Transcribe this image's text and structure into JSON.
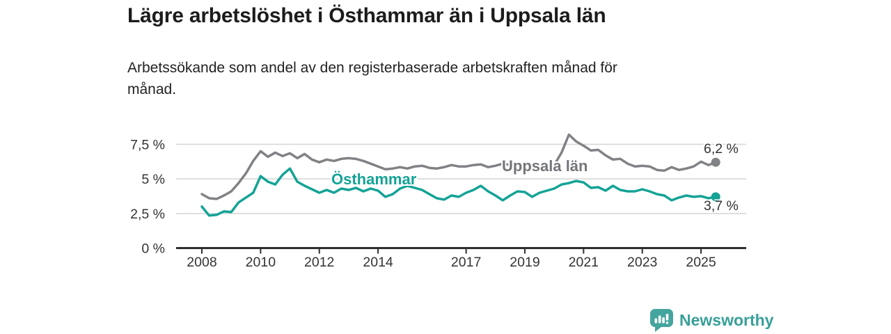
{
  "header": {
    "title": "Lägre arbetslöshet i Östhammar än i Uppsala län",
    "subtitle_line1": "Arbetssökande som andel av den registerbaserade arbetskraften månad för",
    "subtitle_line2": "månad."
  },
  "chart_data": {
    "type": "line",
    "title": "Lägre arbetslöshet i Östhammar än i Uppsala län",
    "subtitle": "Arbetssökande som andel av den registerbaserade arbetskraften månad för månad.",
    "xlabel": "",
    "ylabel": "",
    "x_unit": "year (monthly series, values in percent)",
    "xlim": [
      2007.1,
      2026.5
    ],
    "ylim": [
      0,
      8.5
    ],
    "grid": "horizontal",
    "legend_position": "inline-labels",
    "y_ticks": [
      {
        "value": 0,
        "label": "0 %"
      },
      {
        "value": 2.5,
        "label": "2,5 %"
      },
      {
        "value": 5,
        "label": "5 %"
      },
      {
        "value": 7.5,
        "label": "7,5 %"
      }
    ],
    "x_ticks": [
      {
        "value": 2008,
        "label": "2008"
      },
      {
        "value": 2010,
        "label": "2010"
      },
      {
        "value": 2012,
        "label": "2012"
      },
      {
        "value": 2014,
        "label": "2014"
      },
      {
        "value": 2017,
        "label": "2017"
      },
      {
        "value": 2019,
        "label": "2019"
      },
      {
        "value": 2021,
        "label": "2021"
      },
      {
        "value": 2023,
        "label": "2023"
      },
      {
        "value": 2025,
        "label": "2025"
      }
    ],
    "x": [
      2008,
      2008.25,
      2008.5,
      2008.75,
      2009,
      2009.25,
      2009.5,
      2009.75,
      2010,
      2010.25,
      2010.5,
      2010.75,
      2011,
      2011.25,
      2011.5,
      2011.75,
      2012,
      2012.25,
      2012.5,
      2012.75,
      2013,
      2013.25,
      2013.5,
      2013.75,
      2014,
      2014.25,
      2014.5,
      2014.75,
      2015,
      2015.25,
      2015.5,
      2015.75,
      2016,
      2016.25,
      2016.5,
      2016.75,
      2017,
      2017.25,
      2017.5,
      2017.75,
      2018,
      2018.25,
      2018.5,
      2018.75,
      2019,
      2019.25,
      2019.5,
      2019.75,
      2020,
      2020.25,
      2020.5,
      2020.75,
      2021,
      2021.25,
      2021.5,
      2021.75,
      2022,
      2022.25,
      2022.5,
      2022.75,
      2023,
      2023.25,
      2023.5,
      2023.75,
      2024,
      2024.25,
      2024.5,
      2024.75,
      2025,
      2025.25,
      2025.5
    ],
    "series": [
      {
        "id": "uppsala-lan",
        "label": "Uppsala län",
        "color": "#808285",
        "end_label": "6,2 %",
        "latest_value": 6.2,
        "values": [
          3.9,
          3.6,
          3.55,
          3.8,
          4.1,
          4.7,
          5.4,
          6.3,
          7.0,
          6.6,
          6.9,
          6.65,
          6.85,
          6.5,
          6.8,
          6.4,
          6.2,
          6.4,
          6.3,
          6.45,
          6.5,
          6.45,
          6.3,
          6.1,
          5.9,
          5.7,
          5.75,
          5.85,
          5.75,
          5.9,
          5.95,
          5.8,
          5.75,
          5.85,
          6.0,
          5.9,
          5.9,
          6.0,
          6.05,
          5.85,
          5.95,
          6.1,
          6.0,
          5.9,
          5.95,
          6.0,
          5.9,
          5.95,
          6.0,
          6.9,
          8.2,
          7.7,
          7.4,
          7.05,
          7.1,
          6.7,
          6.4,
          6.45,
          6.1,
          5.9,
          5.95,
          5.9,
          5.65,
          5.6,
          5.85,
          5.65,
          5.75,
          5.9,
          6.25,
          6.0,
          6.2
        ]
      },
      {
        "id": "osthammar",
        "label": "Östhammar",
        "color": "#14a396",
        "end_label": "3,7 %",
        "latest_value": 3.7,
        "values": [
          3.0,
          2.35,
          2.4,
          2.65,
          2.6,
          3.3,
          3.65,
          4.0,
          5.2,
          4.8,
          4.6,
          5.3,
          5.75,
          4.8,
          4.5,
          4.25,
          4.0,
          4.2,
          4.0,
          4.3,
          4.2,
          4.35,
          4.1,
          4.3,
          4.15,
          3.7,
          3.9,
          4.3,
          4.5,
          4.35,
          4.2,
          3.9,
          3.6,
          3.5,
          3.8,
          3.7,
          4.0,
          4.2,
          4.5,
          4.1,
          3.8,
          3.45,
          3.8,
          4.1,
          4.05,
          3.7,
          4.0,
          4.15,
          4.3,
          4.6,
          4.7,
          4.85,
          4.75,
          4.35,
          4.4,
          4.15,
          4.5,
          4.2,
          4.1,
          4.1,
          4.25,
          4.1,
          3.9,
          3.8,
          3.45,
          3.65,
          3.8,
          3.7,
          3.75,
          3.6,
          3.7
        ]
      }
    ]
  },
  "footer": {
    "brand": "Newsworthy"
  },
  "colors": {
    "teal": "#14a396",
    "gray": "#808285",
    "axis": "#2e2e2e",
    "gridline": "#d8d8d8",
    "logo_teal": "#45a49e",
    "wordmark_teal": "#38a099"
  }
}
